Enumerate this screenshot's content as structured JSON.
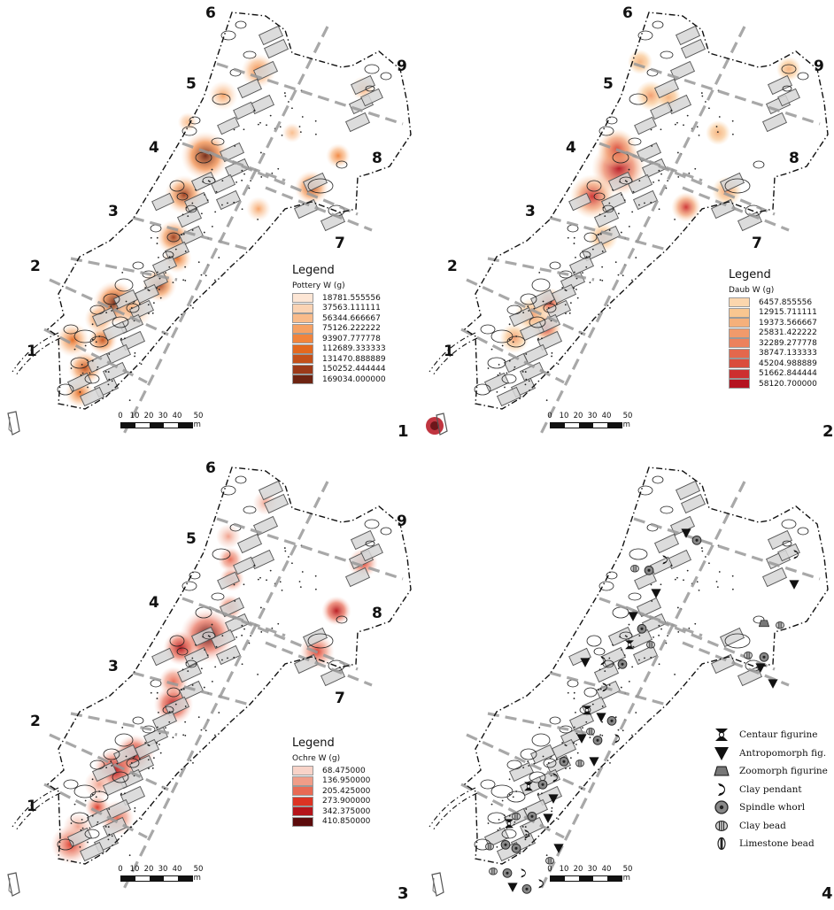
{
  "panels": [
    {
      "id": 1,
      "number_label": "1",
      "area_labels": [
        "1",
        "2",
        "3",
        "4",
        "5",
        "6",
        "7",
        "8",
        "9"
      ],
      "legend": {
        "title": "Legend",
        "subtitle": "Pottery W (g)",
        "classes": [
          {
            "label": "18781.555556",
            "color": "#fde6d5"
          },
          {
            "label": "37563.111111",
            "color": "#fbd3b3"
          },
          {
            "label": "56344.666667",
            "color": "#f9bb8a"
          },
          {
            "label": "75126.222222",
            "color": "#f6a163"
          },
          {
            "label": "93907.777778",
            "color": "#f1843c"
          },
          {
            "label": "112689.333333",
            "color": "#e3681f"
          },
          {
            "label": "131470.888889",
            "color": "#c3501a"
          },
          {
            "label": "150252.444444",
            "color": "#9c3a19"
          },
          {
            "label": "169034.000000",
            "color": "#6e2412"
          }
        ]
      },
      "scale": {
        "labels": [
          "0",
          "10",
          "20",
          "30",
          "40",
          "50 m"
        ]
      }
    },
    {
      "id": 2,
      "number_label": "2",
      "area_labels": [
        "1",
        "2",
        "3",
        "4",
        "5",
        "6",
        "7",
        "8",
        "9"
      ],
      "legend": {
        "title": "Legend",
        "subtitle": "Daub W (g)",
        "classes": [
          {
            "label": "6457.855556",
            "color": "#fbd6ad"
          },
          {
            "label": "12915.711111",
            "color": "#f9c690"
          },
          {
            "label": "19373.566667",
            "color": "#f5b07b"
          },
          {
            "label": "25831.422222",
            "color": "#f19a6b"
          },
          {
            "label": "32289.277778",
            "color": "#ec815c"
          },
          {
            "label": "38747.133333",
            "color": "#e4674c"
          },
          {
            "label": "45204.988889",
            "color": "#da4c3c"
          },
          {
            "label": "51662.844444",
            "color": "#cd2f2f"
          },
          {
            "label": "58120.700000",
            "color": "#b5121f"
          }
        ]
      },
      "scale": {
        "labels": [
          "0",
          "10",
          "20",
          "30",
          "40",
          "50 m"
        ]
      }
    },
    {
      "id": 3,
      "number_label": "3",
      "area_labels": [
        "1",
        "2",
        "3",
        "4",
        "5",
        "6",
        "7",
        "8",
        "9"
      ],
      "legend": {
        "title": "Legend",
        "subtitle": "Ochre W (g)",
        "classes": [
          {
            "label": "68.475000",
            "color": "#f8d3c8"
          },
          {
            "label": "136.950000",
            "color": "#f09d88"
          },
          {
            "label": "205.425000",
            "color": "#e86a54"
          },
          {
            "label": "273.900000",
            "color": "#dc3323"
          },
          {
            "label": "342.375000",
            "color": "#b5141a"
          },
          {
            "label": "410.850000",
            "color": "#5c0b0c"
          }
        ]
      },
      "scale": {
        "labels": [
          "0",
          "10",
          "20",
          "30",
          "40",
          "50 m"
        ]
      }
    },
    {
      "id": 4,
      "number_label": "4",
      "legend": {
        "items": [
          {
            "label": "Centaur figurine",
            "icon": "centaur-figurine-icon"
          },
          {
            "label": "Antropomorph fig.",
            "icon": "antropomorph-figurine-icon"
          },
          {
            "label": "Zoomorph figurine",
            "icon": "zoomorph-figurine-icon"
          },
          {
            "label": "Clay pendant",
            "icon": "clay-pendant-icon"
          },
          {
            "label": "Spindle whorl",
            "icon": "spindle-whorl-icon"
          },
          {
            "label": "Clay bead",
            "icon": "clay-bead-icon"
          },
          {
            "label": "Limestone bead",
            "icon": "limestone-bead-icon"
          }
        ]
      },
      "scale": {
        "labels": [
          "0",
          "10",
          "20",
          "30",
          "40",
          "50 m"
        ]
      }
    }
  ]
}
